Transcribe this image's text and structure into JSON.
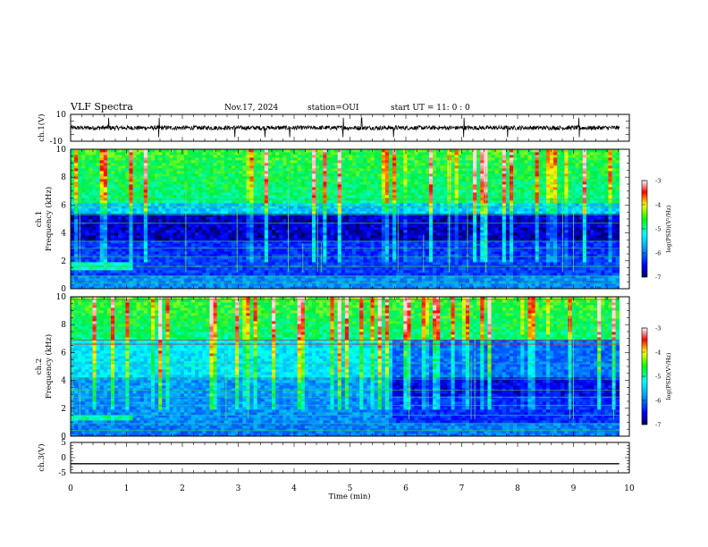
{
  "header": {
    "title": "VLF Spectra",
    "date": "Nov.17, 2024",
    "station": "station=OUI",
    "start": "start  UT =  11: 0  : 0"
  },
  "chart_data": [
    {
      "type": "line",
      "panel": "ch1-waveform",
      "ylabel": "ch.1(V)",
      "ylim": [
        -10,
        10
      ],
      "yticks": [
        "10",
        "-10"
      ],
      "xlim": [
        0,
        10
      ],
      "series": [
        {
          "values": [
            0,
            0,
            0
          ]
        }
      ],
      "color": "#000000"
    },
    {
      "type": "heatmap",
      "panel": "ch1-spectrogram",
      "ylabel": "ch.1\nFrequency (kHz)",
      "ylim": [
        0,
        10
      ],
      "yticks": [
        "0",
        "2",
        "4",
        "6",
        "8",
        "10"
      ],
      "xlim": [
        0,
        10
      ],
      "colorbar": {
        "label": "log(PSD)(V²/Hz)",
        "ticks": [
          "-3",
          "-4",
          "-5",
          "-6",
          "-7"
        ],
        "range": [
          -7,
          -3
        ]
      }
    },
    {
      "type": "heatmap",
      "panel": "ch2-spectrogram",
      "ylabel": "ch.2\nFrequency (kHz)",
      "ylim": [
        0,
        10
      ],
      "yticks": [
        "0",
        "2",
        "4",
        "6",
        "8",
        "10"
      ],
      "xlim": [
        0,
        10
      ],
      "colorbar": {
        "label": "log(PSD)(V²/Hz)",
        "ticks": [
          "-3",
          "-4",
          "-5",
          "-6",
          "-7"
        ],
        "range": [
          -7,
          -3
        ]
      }
    },
    {
      "type": "line",
      "panel": "ch3-waveform",
      "ylabel": "ch.3(V)",
      "ylim": [
        -5,
        5
      ],
      "yticks": [
        "5",
        "0",
        "-5"
      ],
      "xlim": [
        0,
        10
      ],
      "series": [
        {
          "values": [
            -2,
            -2
          ]
        }
      ],
      "color": "#000000"
    }
  ],
  "xaxis": {
    "label": "Time (min)",
    "ticks": [
      "0",
      "1",
      "2",
      "3",
      "4",
      "5",
      "6",
      "7",
      "8",
      "9",
      "10"
    ],
    "data_end": 9.82
  }
}
